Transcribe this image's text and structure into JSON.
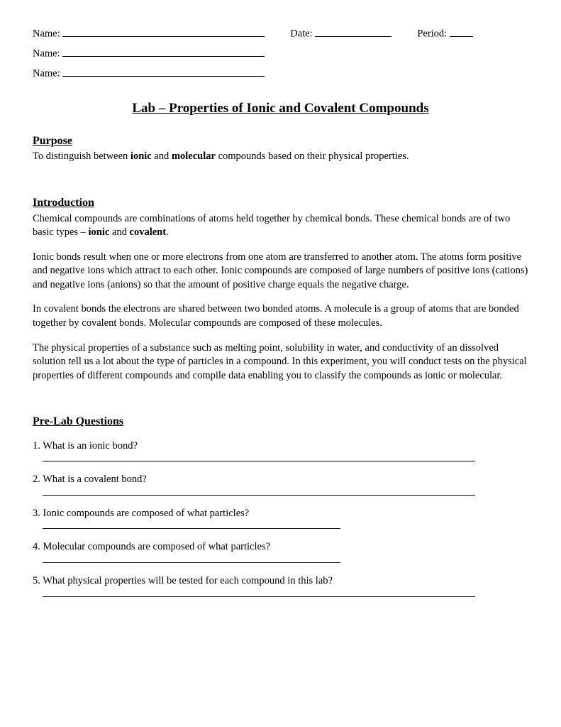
{
  "header": {
    "name_label": "Name:",
    "date_label": "Date:",
    "period_label": "Period:"
  },
  "title": "Lab – Properties of Ionic and Covalent Compounds",
  "sections": {
    "purpose": {
      "heading": "Purpose",
      "text_pre": "To distinguish between ",
      "bold1": "ionic",
      "text_mid": " and ",
      "bold2": "molecular",
      "text_post": " compounds based on their physical properties."
    },
    "introduction": {
      "heading": "Introduction",
      "p1_pre": "Chemical compounds are combinations of atoms held together by chemical bonds.  These chemical bonds are of two basic types – ",
      "p1_b1": "ionic",
      "p1_mid": " and ",
      "p1_b2": "covalent",
      "p1_post": ".",
      "p2": "Ionic bonds result when one or more electrons from one atom are transferred to another atom. The atoms form positive and negative ions which attract to each other. Ionic compounds are composed of large numbers of positive ions (cations) and negative ions (anions) so that the amount of positive charge equals the negative charge.",
      "p3": "In covalent bonds the electrons are shared between two bonded atoms. A molecule is a group of atoms that are bonded together by covalent bonds. Molecular compounds are composed of these molecules.",
      "p4": "The physical properties of a substance such as melting point, solubility in water, and conductivity of an dissolved solution tell us a lot about the type of particles in a compound. In this experiment, you will conduct tests on the physical properties of different compounds and compile data enabling you to classify the compounds as ionic or molecular."
    },
    "prelab": {
      "heading": "Pre-Lab Questions",
      "q1": "1.  What is an ionic bond?",
      "q2": "2.  What is a covalent bond?",
      "q3": "3.  Ionic compounds are composed of what particles?",
      "q4": "4.  Molecular compounds are composed of what particles?",
      "q5": "5.  What physical properties will be tested for each compound in this lab?"
    }
  },
  "colors": {
    "page_bg": "#ffffff",
    "text": "#000000",
    "line": "#000000"
  }
}
